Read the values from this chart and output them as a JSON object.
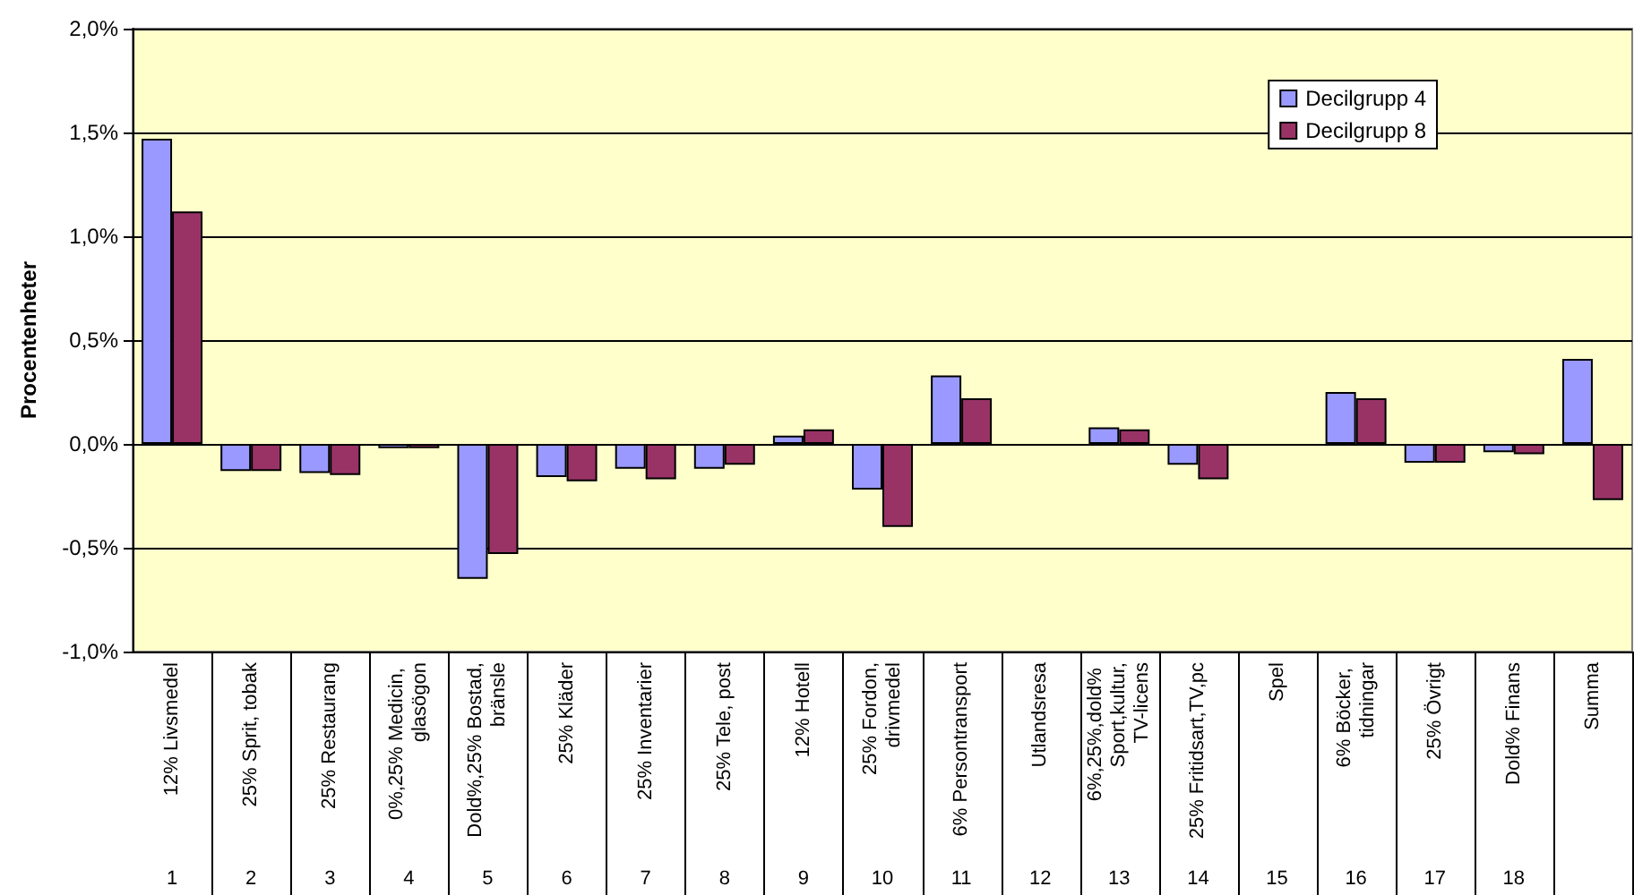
{
  "chart_data": {
    "type": "bar",
    "ylabel": "Procentenheter",
    "categories": [
      "12% Livsmedel",
      "25% Sprit, tobak",
      "25% Restaurang",
      "0%,25% Medicin, glasögon",
      "Dold%,25% Bostad,bränsle",
      "25% Kläder",
      "25% Inventarier",
      "25% Tele, post",
      "12% Hotell",
      "25% Fordon,drivmedel",
      "6% Persontransport",
      "Utlandsresa",
      "6%,25%,dold% Sport,kultur,TV-licens",
      "25% Fritidsart,TV,pc",
      "Spel",
      "6% Böcker, tidningar",
      "25% Övrigt",
      "Dold% Finans",
      "Summa"
    ],
    "series": [
      {
        "name": "Decilgrupp 4",
        "color": "#9999ff",
        "values": [
          1.47,
          -0.13,
          -0.14,
          -0.02,
          -0.65,
          -0.16,
          -0.12,
          -0.12,
          0.04,
          -0.22,
          0.33,
          null,
          0.08,
          -0.1,
          null,
          0.25,
          -0.09,
          -0.04,
          0.41
        ]
      },
      {
        "name": "Decilgrupp 8",
        "color": "#993366",
        "values": [
          1.12,
          -0.13,
          -0.15,
          -0.02,
          -0.53,
          -0.18,
          -0.17,
          -0.1,
          0.07,
          -0.4,
          0.22,
          null,
          0.07,
          -0.17,
          null,
          0.22,
          -0.09,
          -0.05,
          -0.27
        ]
      }
    ],
    "ylim": [
      -1,
      2
    ],
    "yticks": [
      {
        "value": -1,
        "label": "-1,0%"
      },
      {
        "value": -0.5,
        "label": "-0,5%"
      },
      {
        "value": 0,
        "label": "0,0%"
      },
      {
        "value": 0.5,
        "label": "0,5%"
      },
      {
        "value": 1,
        "label": "1,0%"
      },
      {
        "value": 1.5,
        "label": "1,5%"
      },
      {
        "value": 2,
        "label": "2,0%"
      }
    ],
    "grid": "y",
    "legend": "top right",
    "annotations": [
      "1",
      "2",
      "3",
      "4",
      "5",
      "6",
      "7",
      "8",
      "9",
      "10",
      "11",
      "12",
      "13",
      "14",
      "15",
      "16",
      "17",
      "18"
    ]
  }
}
